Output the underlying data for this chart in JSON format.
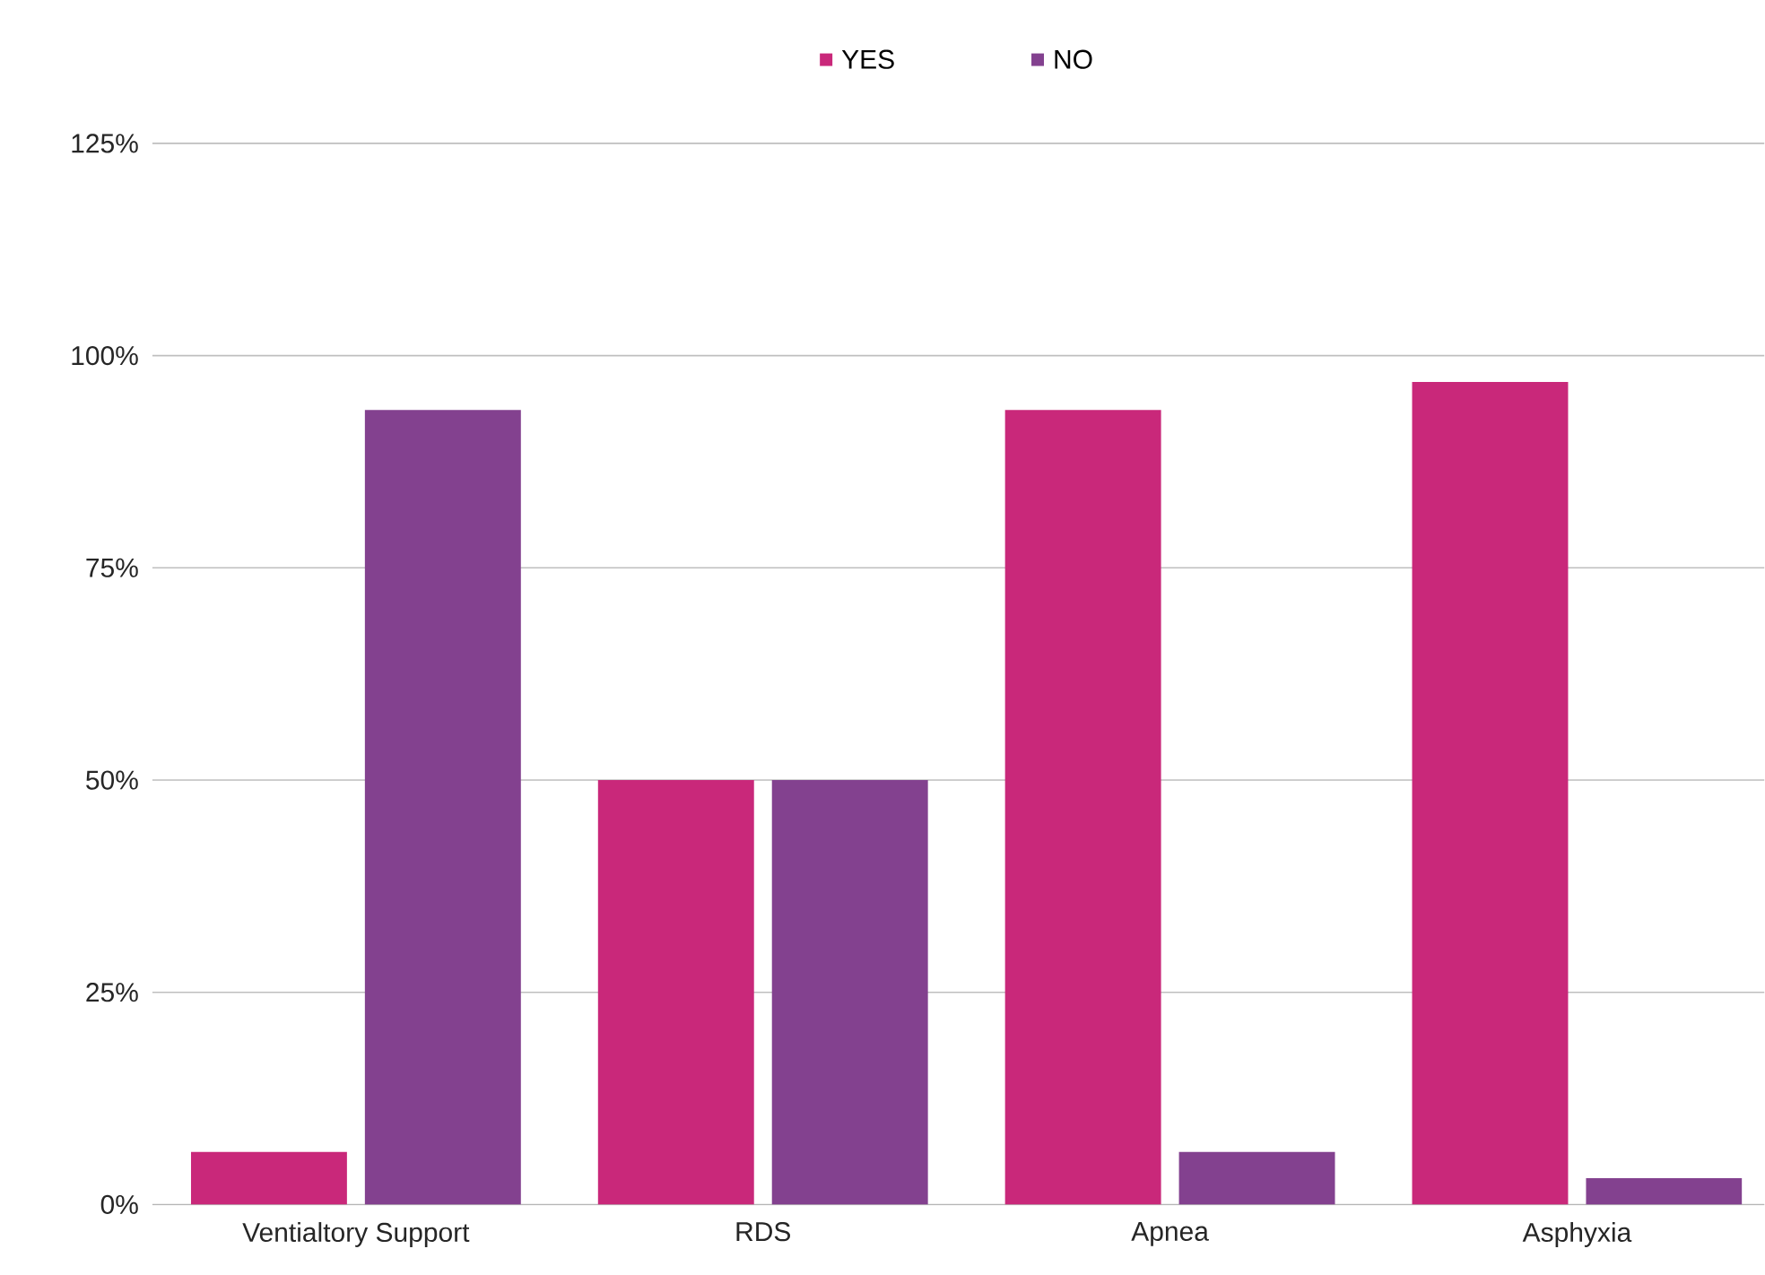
{
  "chart_data": {
    "type": "bar",
    "categories": [
      "Ventialtory Support",
      "RDS",
      "Apnea",
      "Asphyxia"
    ],
    "series": [
      {
        "name": "YES",
        "color": "#c9287a",
        "values": [
          6.2,
          50,
          93.6,
          96.9
        ]
      },
      {
        "name": "NO",
        "color": "#83418f",
        "values": [
          93.6,
          50,
          6.2,
          3.1
        ]
      }
    ],
    "ylim": [
      0,
      125
    ],
    "yticks": [
      {
        "value": 0,
        "label": "0%"
      },
      {
        "value": 25,
        "label": "25%"
      },
      {
        "value": 50,
        "label": "50%"
      },
      {
        "value": 75,
        "label": "75%"
      },
      {
        "value": 100,
        "label": "100%"
      },
      {
        "value": 125,
        "label": "125%"
      }
    ],
    "grid": "y",
    "legend": "top"
  }
}
